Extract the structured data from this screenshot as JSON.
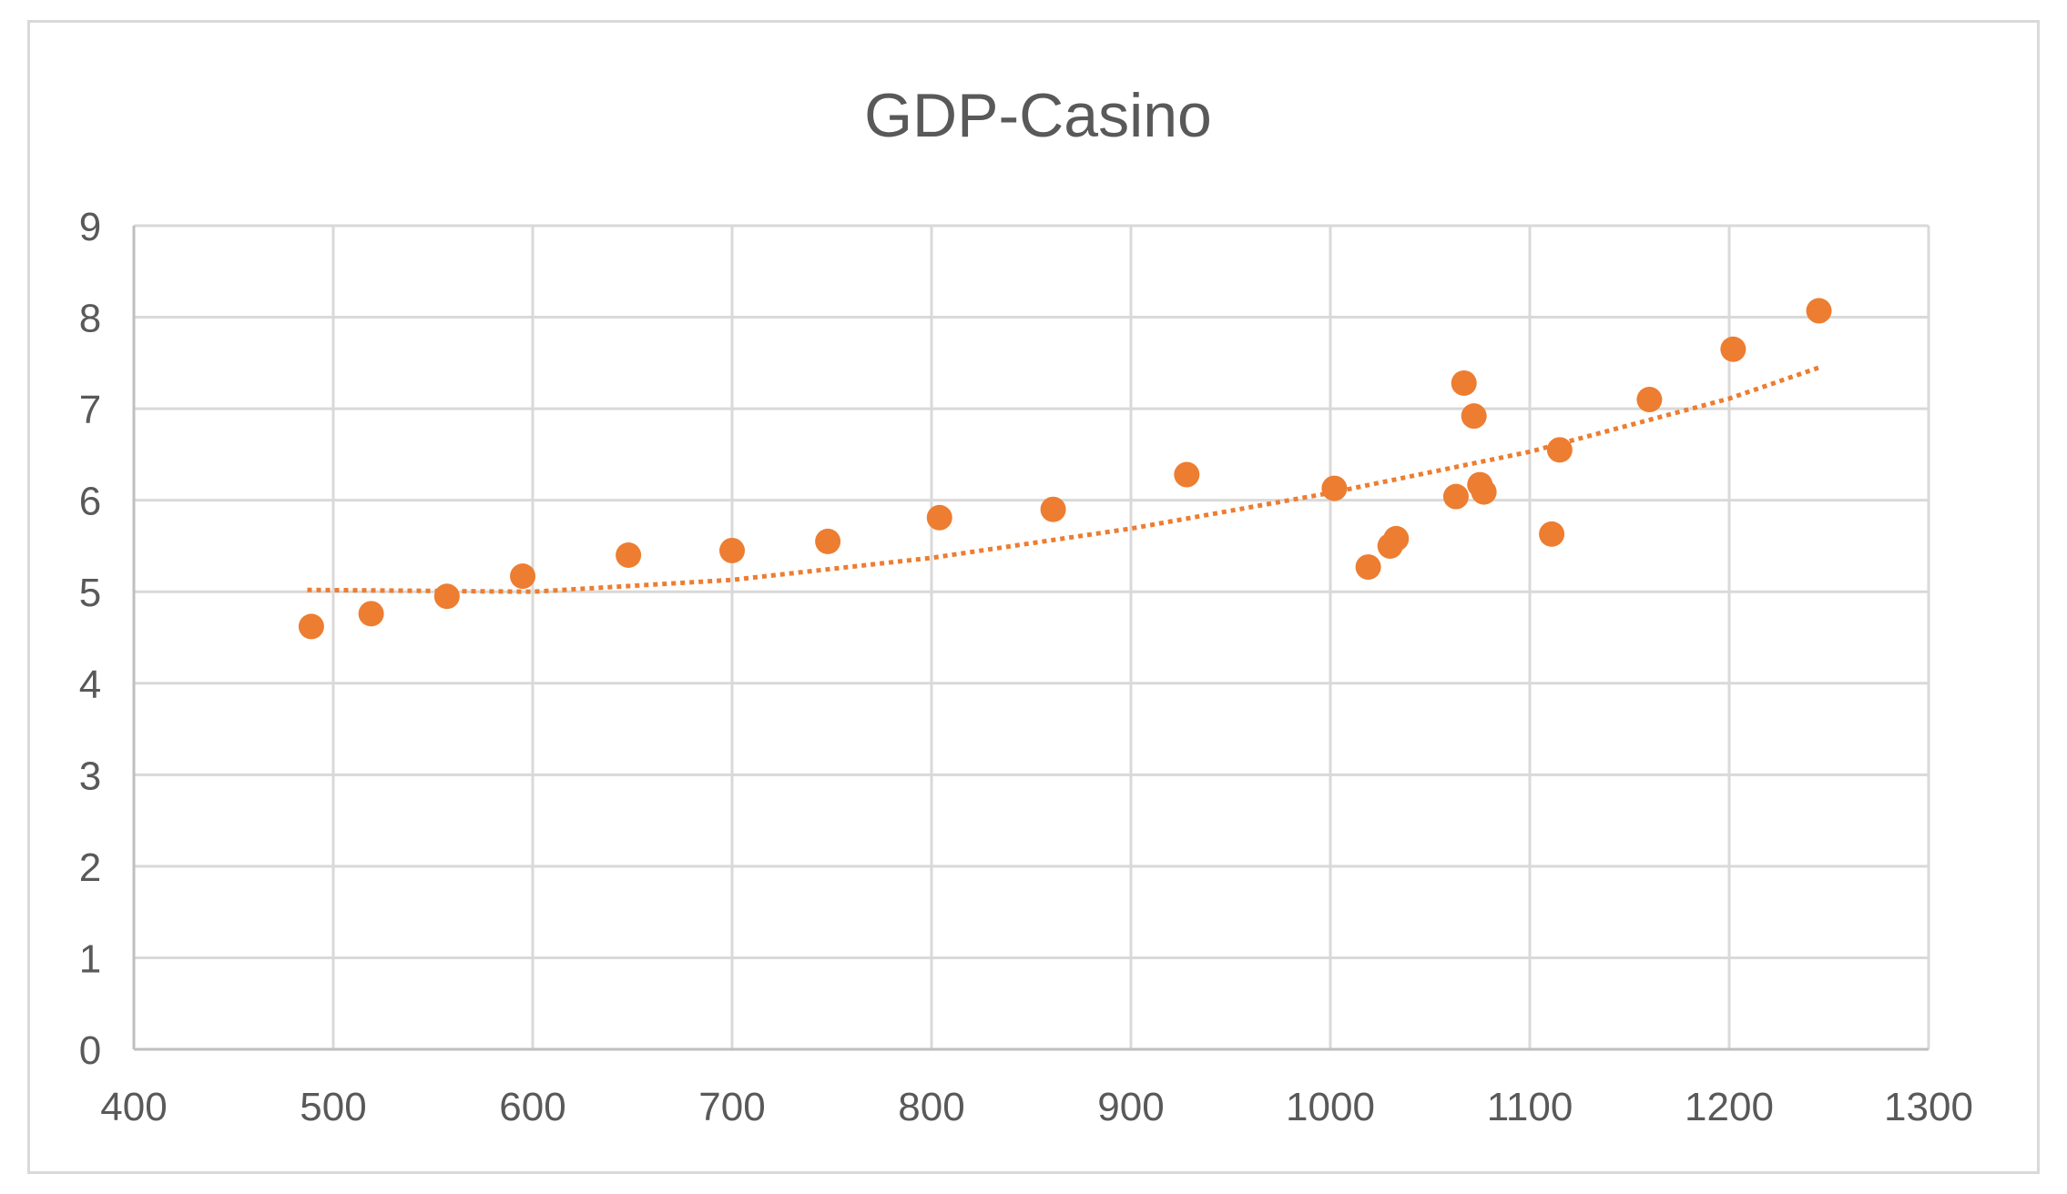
{
  "chart_data": {
    "type": "scatter",
    "title": "GDP-Casino",
    "xlabel": "",
    "ylabel": "",
    "xlim": [
      400,
      1300
    ],
    "ylim": [
      0,
      9
    ],
    "xticks": [
      400,
      500,
      600,
      700,
      800,
      900,
      1000,
      1100,
      1200,
      1300
    ],
    "yticks": [
      0,
      1,
      2,
      3,
      4,
      5,
      6,
      7,
      8,
      9
    ],
    "grid": true,
    "legend": "none",
    "series": [
      {
        "color": "#ED7D31",
        "points": [
          {
            "x": 489,
            "y": 4.62
          },
          {
            "x": 519,
            "y": 4.76
          },
          {
            "x": 557,
            "y": 4.95
          },
          {
            "x": 595,
            "y": 5.17
          },
          {
            "x": 648,
            "y": 5.4
          },
          {
            "x": 700,
            "y": 5.45
          },
          {
            "x": 748,
            "y": 5.55
          },
          {
            "x": 804,
            "y": 5.81
          },
          {
            "x": 861,
            "y": 5.9
          },
          {
            "x": 928,
            "y": 6.28
          },
          {
            "x": 1002,
            "y": 6.13
          },
          {
            "x": 1019,
            "y": 5.27
          },
          {
            "x": 1030,
            "y": 5.5
          },
          {
            "x": 1033,
            "y": 5.58
          },
          {
            "x": 1063,
            "y": 6.04
          },
          {
            "x": 1067,
            "y": 7.28
          },
          {
            "x": 1072,
            "y": 6.92
          },
          {
            "x": 1075,
            "y": 6.17
          },
          {
            "x": 1077,
            "y": 6.09
          },
          {
            "x": 1111,
            "y": 5.63
          },
          {
            "x": 1115,
            "y": 6.55
          },
          {
            "x": 1160,
            "y": 7.1
          },
          {
            "x": 1202,
            "y": 7.65
          },
          {
            "x": 1245,
            "y": 8.07
          }
        ]
      }
    ],
    "trendline": {
      "style": "dotted",
      "color": "#ED7D31",
      "points": [
        {
          "x": 487,
          "y": 5.02
        },
        {
          "x": 600,
          "y": 5.0
        },
        {
          "x": 700,
          "y": 5.13
        },
        {
          "x": 800,
          "y": 5.37
        },
        {
          "x": 900,
          "y": 5.69
        },
        {
          "x": 1000,
          "y": 6.08
        },
        {
          "x": 1100,
          "y": 6.53
        },
        {
          "x": 1200,
          "y": 7.11
        },
        {
          "x": 1245,
          "y": 7.45
        }
      ]
    }
  }
}
